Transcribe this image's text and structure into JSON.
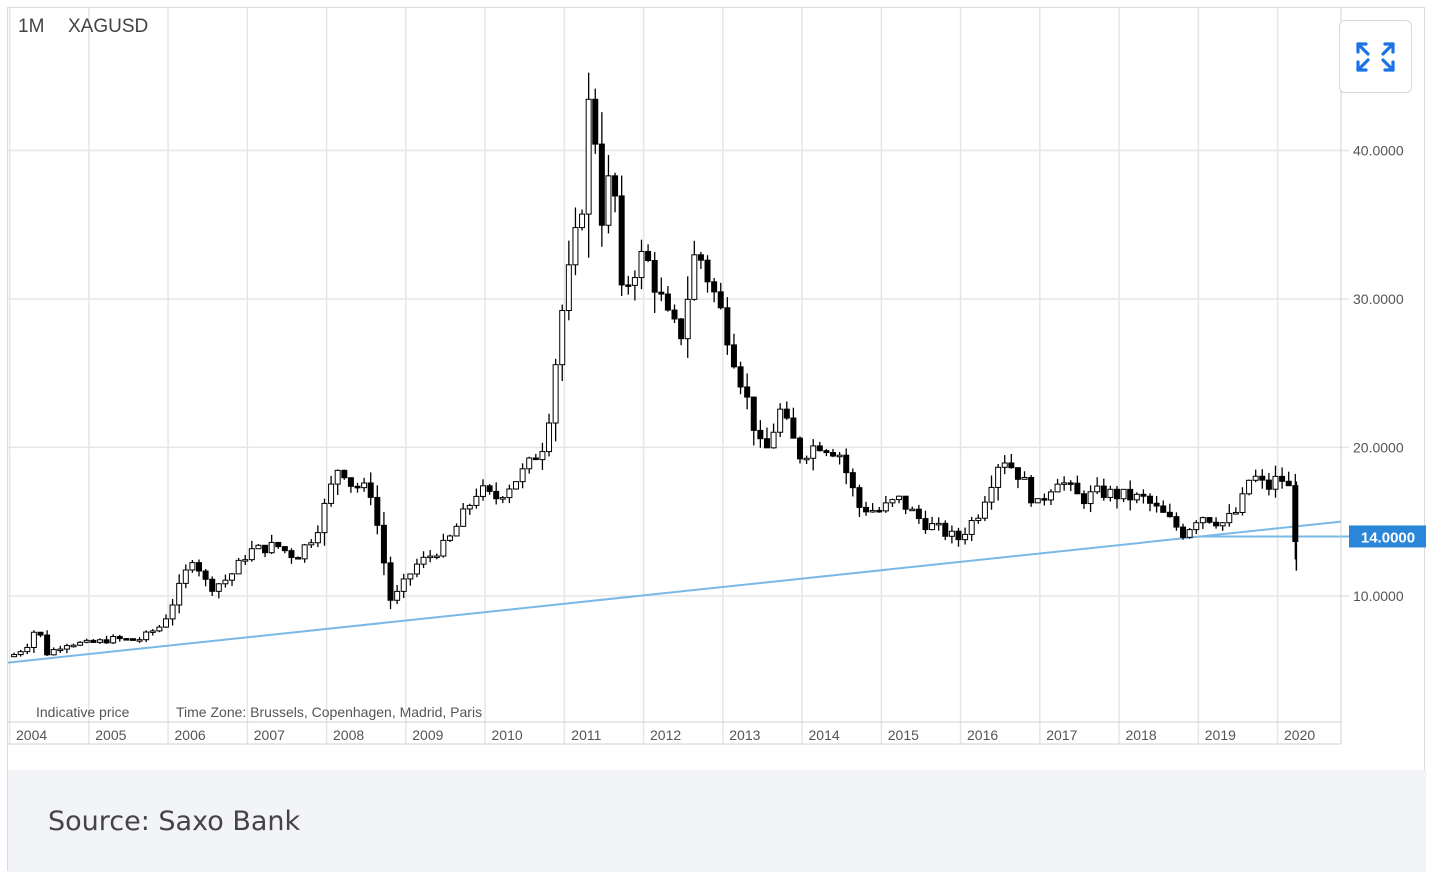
{
  "header": {
    "interval": "1M",
    "symbol": "XAGUSD"
  },
  "expand_icon": "expand-arrows-icon",
  "footer": {
    "source": "Source: Saxo Bank"
  },
  "colors": {
    "candle": "#000000",
    "trendline": "#7ab8e6",
    "price_label_bg": "#2a86d9",
    "grid": "#e6e6e6"
  },
  "chart_data": {
    "type": "candlestick",
    "interval": "1M",
    "symbol": "XAGUSD",
    "notes": [
      "Indicative price",
      "Time Zone: Brussels, Copenhagen, Madrid, Paris"
    ],
    "x_ticks": [
      "2004",
      "2005",
      "2006",
      "2007",
      "2008",
      "2009",
      "2010",
      "2011",
      "2012",
      "2013",
      "2014",
      "2015",
      "2016",
      "2017",
      "2018",
      "2019",
      "2020"
    ],
    "y_ticks": [
      "10.0000",
      "20.0000",
      "30.0000",
      "40.0000"
    ],
    "current_price_label": "14.0000",
    "ylim": [
      1.5,
      49.6
    ],
    "xlim": [
      2003.98,
      2020.8
    ],
    "grid": true,
    "trendline": {
      "from": [
        2003.98,
        5.5
      ],
      "to": [
        2020.8,
        15.0
      ]
    },
    "horizontal_line": {
      "from": 2019.0,
      "value": 14.0
    },
    "anchors": [
      [
        2004.0,
        5.9
      ],
      [
        2004.2,
        6.6
      ],
      [
        2004.33,
        8.0
      ],
      [
        2004.45,
        6.1
      ],
      [
        2004.7,
        6.8
      ],
      [
        2005.0,
        6.8
      ],
      [
        2005.3,
        7.1
      ],
      [
        2005.6,
        7.0
      ],
      [
        2005.9,
        8.0
      ],
      [
        2006.0,
        9.0
      ],
      [
        2006.3,
        12.7
      ],
      [
        2006.5,
        10.5
      ],
      [
        2006.75,
        11.2
      ],
      [
        2007.0,
        13.0
      ],
      [
        2007.35,
        13.4
      ],
      [
        2007.6,
        12.6
      ],
      [
        2007.85,
        14.3
      ],
      [
        2008.15,
        19.0
      ],
      [
        2008.3,
        17.5
      ],
      [
        2008.55,
        17.0
      ],
      [
        2008.8,
        9.5
      ],
      [
        2009.1,
        12.0
      ],
      [
        2009.5,
        13.5
      ],
      [
        2009.9,
        17.2
      ],
      [
        2010.1,
        16.5
      ],
      [
        2010.5,
        18.5
      ],
      [
        2010.75,
        20.5
      ],
      [
        2010.95,
        29.0
      ],
      [
        2011.2,
        36.0
      ],
      [
        2011.32,
        45.0
      ],
      [
        2011.45,
        35.5
      ],
      [
        2011.6,
        39.0
      ],
      [
        2011.7,
        30.0
      ],
      [
        2011.85,
        32.0
      ],
      [
        2012.0,
        33.0
      ],
      [
        2012.3,
        28.5
      ],
      [
        2012.45,
        27.5
      ],
      [
        2012.65,
        33.5
      ],
      [
        2012.9,
        30.0
      ],
      [
        2013.0,
        28.5
      ],
      [
        2013.3,
        23.0
      ],
      [
        2013.5,
        19.2
      ],
      [
        2013.7,
        22.5
      ],
      [
        2013.95,
        19.5
      ],
      [
        2014.2,
        20.3
      ],
      [
        2014.45,
        19.7
      ],
      [
        2014.7,
        16.0
      ],
      [
        2014.95,
        15.7
      ],
      [
        2015.2,
        16.5
      ],
      [
        2015.5,
        15.0
      ],
      [
        2015.7,
        14.5
      ],
      [
        2015.95,
        13.8
      ],
      [
        2016.2,
        15.5
      ],
      [
        2016.5,
        19.5
      ],
      [
        2016.75,
        18.0
      ],
      [
        2016.95,
        16.0
      ],
      [
        2017.2,
        18.0
      ],
      [
        2017.5,
        16.5
      ],
      [
        2017.75,
        17.0
      ],
      [
        2017.95,
        16.8
      ],
      [
        2018.3,
        16.5
      ],
      [
        2018.6,
        15.2
      ],
      [
        2018.8,
        14.2
      ],
      [
        2019.0,
        15.5
      ],
      [
        2019.3,
        14.9
      ],
      [
        2019.5,
        15.8
      ],
      [
        2019.65,
        18.2
      ],
      [
        2019.85,
        17.2
      ],
      [
        2020.0,
        18.0
      ],
      [
        2020.12,
        17.5
      ],
      [
        2020.18,
        14.0
      ]
    ]
  }
}
